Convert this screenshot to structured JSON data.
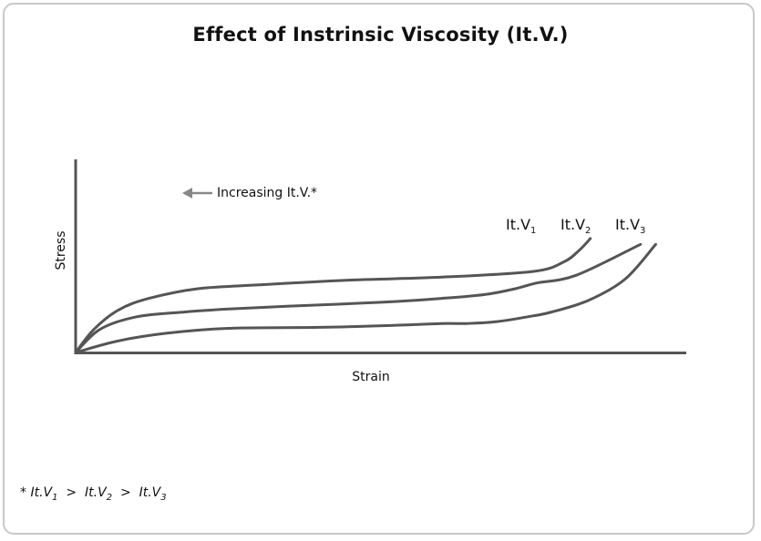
{
  "chart_data": {
    "type": "line",
    "title": "Effect of Instrinsic Viscosity (It.V.)",
    "xlabel": "Strain",
    "ylabel": "Stress",
    "xlim": [
      0,
      100
    ],
    "ylim": [
      0,
      100
    ],
    "grid": false,
    "annotation": {
      "arrow": "left",
      "text": "Increasing It.V.*"
    },
    "series": [
      {
        "name_base": "It.V",
        "name_sub": "1",
        "color": "#555555",
        "x": [
          0,
          3,
          7,
          12,
          20,
          30,
          45,
          60,
          75,
          80,
          82.5,
          84.3
        ],
        "y": [
          0,
          12,
          22,
          28,
          33,
          35,
          37.5,
          39,
          42,
          47,
          53,
          59
        ]
      },
      {
        "name_base": "It.V",
        "name_sub": "2",
        "color": "#555555",
        "x": [
          0,
          4,
          10,
          18,
          25,
          35,
          50,
          60,
          67,
          72,
          75.5,
          82,
          92.5
        ],
        "y": [
          0,
          12,
          18.5,
          21,
          22.5,
          24,
          26,
          28,
          30,
          33,
          36,
          40,
          56
        ]
      },
      {
        "name_base": "It.V",
        "name_sub": "3",
        "color": "#555555",
        "x": [
          0,
          7,
          15,
          25,
          40,
          52,
          60,
          64,
          69,
          75,
          78,
          84,
          90,
          95
        ],
        "y": [
          0,
          6,
          10,
          12.5,
          13,
          14,
          15,
          15,
          16,
          19,
          21,
          27,
          38,
          56
        ]
      }
    ]
  },
  "footnote": {
    "star": "*",
    "items": [
      {
        "base": "It.V",
        "sub": "1"
      },
      {
        "base": "It.V",
        "sub": "2"
      },
      {
        "base": "It.V",
        "sub": "3"
      }
    ],
    "separator": ">"
  }
}
